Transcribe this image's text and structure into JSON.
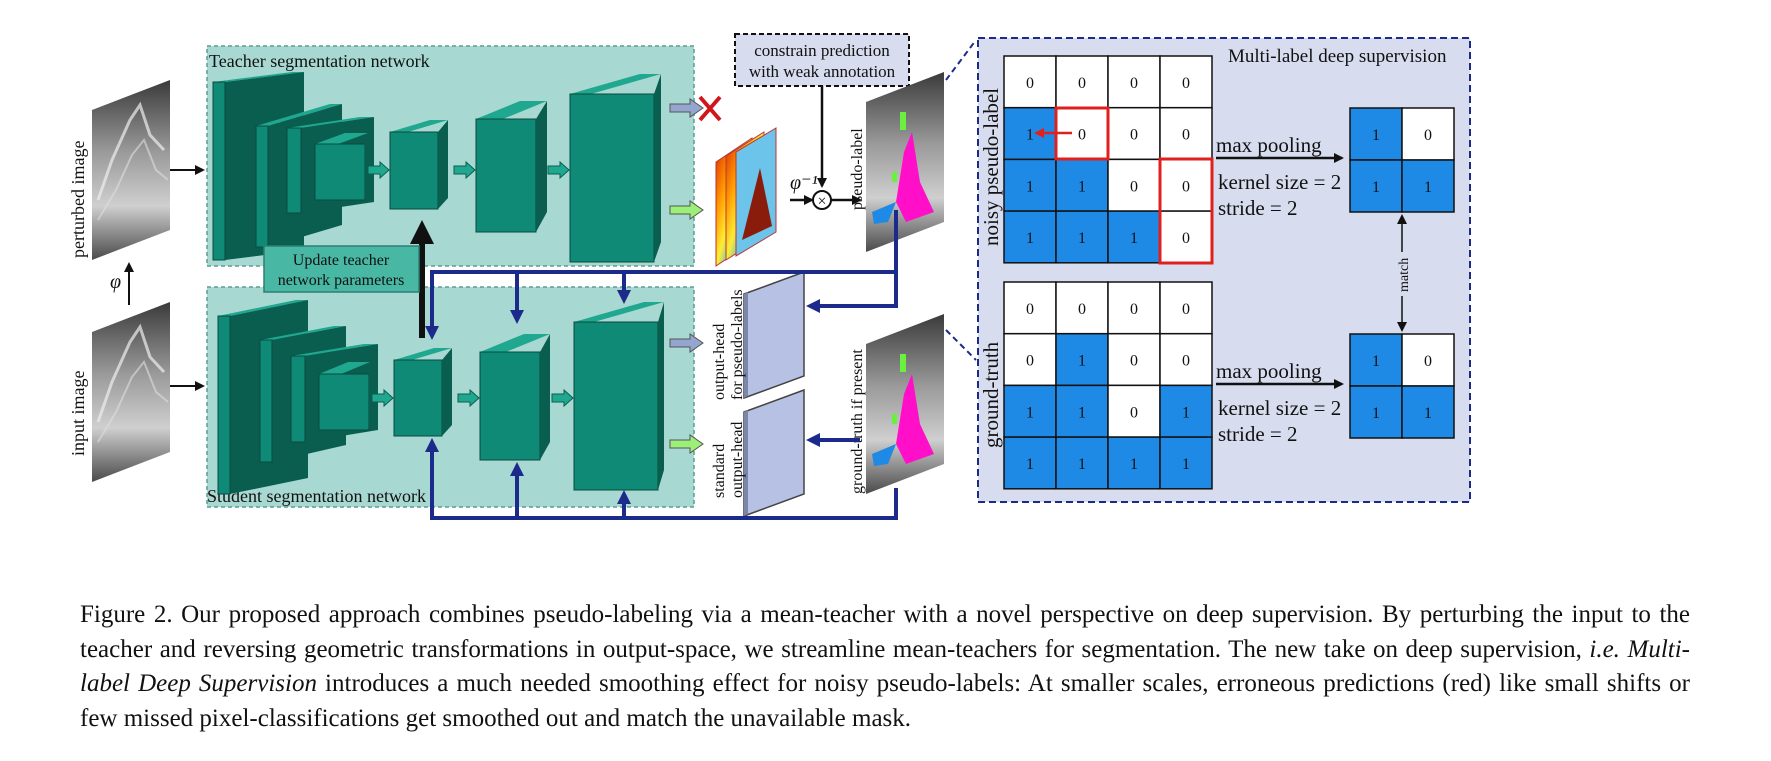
{
  "figure": {
    "teacher_label": "Teacher segmentation network",
    "student_label": "Student segmentation network",
    "perturbed_image": "perturbed image",
    "input_image": "input image",
    "phi": "φ",
    "phi_inverse": "φ⁻¹",
    "multiply_symbol": "×",
    "constrain_line1": "constrain prediction",
    "constrain_line2": "with weak annotation",
    "update_line1": "Update teacher",
    "update_line2": "network parameters",
    "pseudo_label_side": "pseudo-label",
    "ground_truth_side": "ground-truth if present",
    "head_pseudo_line1": "output-head",
    "head_pseudo_line2": "for pseudo-labels",
    "head_std_line1": "standard",
    "head_std_line2": "output-head",
    "mlds_title": "Multi-label deep supervision",
    "noisy_pseudo_label": "noisy  pseudo-label",
    "ground_truth": "ground-truth",
    "max_pooling": "max pooling",
    "kernel_size": "kernel size = 2",
    "stride": "stride = 2",
    "match": "match",
    "noisy_grid": [
      [
        "0",
        "0",
        "0",
        "0"
      ],
      [
        "1",
        "0",
        "0",
        "0"
      ],
      [
        "1",
        "1",
        "0",
        "0"
      ],
      [
        "1",
        "1",
        "1",
        "0"
      ]
    ],
    "gt_grid": [
      [
        "0",
        "0",
        "0",
        "0"
      ],
      [
        "0",
        "1",
        "0",
        "0"
      ],
      [
        "1",
        "1",
        "0",
        "1"
      ],
      [
        "1",
        "1",
        "1",
        "1"
      ]
    ],
    "pooled_grid": [
      [
        "1",
        "0"
      ],
      [
        "1",
        "1"
      ]
    ],
    "pooled_grid_gt": [
      [
        "1",
        "0"
      ],
      [
        "1",
        "1"
      ]
    ],
    "colors": {
      "panel_bg": "#a8d8d2",
      "cube_front": "#0f8a76",
      "cube_top": "#1fa88f",
      "cube_side": "#0a5e50",
      "blue_cell": "#1e8ae6",
      "arrow_navy": "#1c2a8c",
      "red": "#e0201c",
      "mlds_bg": "#d7dcef"
    }
  },
  "caption": {
    "part1": "Figure 2. Our proposed approach combines pseudo-labeling via a mean-teacher with a novel perspective on deep supervision. By perturbing the input to the teacher and reversing geometric transformations in output-space, we streamline mean-teachers for segmentation. The new take on deep supervision, ",
    "ie": "i.e.",
    "mlds": " Multi-label Deep Supervision",
    "part2": " introduces a much needed smoothing effect for noisy pseudo-labels: At smaller scales, erroneous predictions (red) like small shifts or few missed pixel-classifications get smoothed out and match the unavailable mask."
  }
}
